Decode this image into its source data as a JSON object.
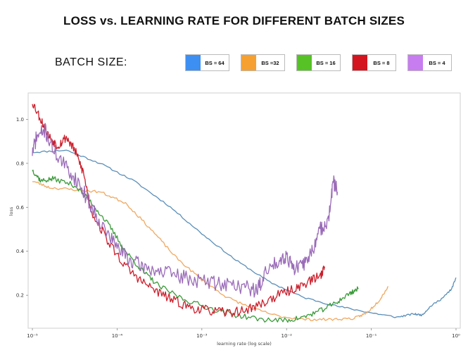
{
  "page": {
    "title": "LOSS vs. LEARNING RATE  FOR DIFFERENT BATCH SIZES",
    "legend_label": "BATCH SIZE:"
  },
  "legend": [
    {
      "label": "BS = 64",
      "color": "#3d8ff2"
    },
    {
      "label": "BS =32",
      "color": "#f5a030"
    },
    {
      "label": "BS = 16",
      "color": "#56c226"
    },
    {
      "label": "BS = 8",
      "color": "#d4141f"
    },
    {
      "label": "BS = 4",
      "color": "#c77df0"
    }
  ],
  "chart_data": {
    "type": "line",
    "title": "LOSS vs. LEARNING RATE  FOR DIFFERENT BATCH SIZES",
    "xlabel": "learning rate (log scale)",
    "ylabel": "loss",
    "x_scale": "log",
    "xlim_log10": [
      -5.05,
      0.05
    ],
    "ylim": [
      0.05,
      1.12
    ],
    "x_ticks": [
      {
        "label": "10⁻⁵",
        "log10": -5
      },
      {
        "label": "10⁻⁴",
        "log10": -4
      },
      {
        "label": "10⁻³",
        "log10": -3
      },
      {
        "label": "10⁻²",
        "log10": -2
      },
      {
        "label": "10⁻¹",
        "log10": -1
      },
      {
        "label": "10⁰",
        "log10": 0
      }
    ],
    "y_ticks": [
      {
        "label": "0.2",
        "value": 0.2
      },
      {
        "label": "0.4",
        "value": 0.4
      },
      {
        "label": "0.6",
        "value": 0.6
      },
      {
        "label": "0.8",
        "value": 0.8
      },
      {
        "label": "1.0",
        "value": 1.0
      }
    ],
    "series": [
      {
        "name": "BS = 64",
        "color": "#5b8fb9",
        "noise": 0.004,
        "seed": 11,
        "points": [
          [
            -5.0,
            0.85
          ],
          [
            -4.6,
            0.86
          ],
          [
            -4.2,
            0.8
          ],
          [
            -3.8,
            0.72
          ],
          [
            -3.4,
            0.61
          ],
          [
            -3.0,
            0.48
          ],
          [
            -2.6,
            0.36
          ],
          [
            -2.2,
            0.26
          ],
          [
            -1.8,
            0.19
          ],
          [
            -1.4,
            0.15
          ],
          [
            -1.0,
            0.12
          ],
          [
            -0.7,
            0.1
          ],
          [
            -0.5,
            0.115
          ],
          [
            -0.4,
            0.11
          ],
          [
            -0.3,
            0.15
          ],
          [
            -0.15,
            0.19
          ],
          [
            -0.05,
            0.23
          ],
          [
            0.0,
            0.28
          ]
        ]
      },
      {
        "name": "BS =32",
        "color": "#f0a860",
        "noise": 0.006,
        "seed": 23,
        "points": [
          [
            -5.0,
            0.72
          ],
          [
            -4.8,
            0.69
          ],
          [
            -4.5,
            0.68
          ],
          [
            -4.2,
            0.67
          ],
          [
            -3.9,
            0.62
          ],
          [
            -3.6,
            0.5
          ],
          [
            -3.3,
            0.37
          ],
          [
            -3.0,
            0.27
          ],
          [
            -2.7,
            0.19
          ],
          [
            -2.4,
            0.14
          ],
          [
            -2.1,
            0.105
          ],
          [
            -1.8,
            0.09
          ],
          [
            -1.5,
            0.09
          ],
          [
            -1.2,
            0.095
          ],
          [
            -1.05,
            0.12
          ],
          [
            -0.9,
            0.18
          ],
          [
            -0.8,
            0.24
          ]
        ]
      },
      {
        "name": "BS = 16",
        "color": "#3a9a3a",
        "noise": 0.012,
        "seed": 37,
        "points": [
          [
            -5.0,
            0.77
          ],
          [
            -4.9,
            0.72
          ],
          [
            -4.75,
            0.73
          ],
          [
            -4.5,
            0.7
          ],
          [
            -4.3,
            0.62
          ],
          [
            -4.1,
            0.52
          ],
          [
            -3.9,
            0.4
          ],
          [
            -3.7,
            0.31
          ],
          [
            -3.5,
            0.24
          ],
          [
            -3.2,
            0.18
          ],
          [
            -2.9,
            0.14
          ],
          [
            -2.6,
            0.11
          ],
          [
            -2.3,
            0.09
          ],
          [
            -2.0,
            0.085
          ],
          [
            -1.8,
            0.1
          ],
          [
            -1.6,
            0.13
          ],
          [
            -1.4,
            0.17
          ],
          [
            -1.25,
            0.21
          ],
          [
            -1.15,
            0.23
          ]
        ]
      },
      {
        "name": "BS = 8",
        "color": "#cc1f2c",
        "noise": 0.022,
        "seed": 53,
        "points": [
          [
            -5.0,
            1.08
          ],
          [
            -4.9,
            1.0
          ],
          [
            -4.8,
            0.92
          ],
          [
            -4.7,
            0.88
          ],
          [
            -4.6,
            0.92
          ],
          [
            -4.5,
            0.86
          ],
          [
            -4.4,
            0.76
          ],
          [
            -4.3,
            0.58
          ],
          [
            -4.1,
            0.44
          ],
          [
            -3.9,
            0.33
          ],
          [
            -3.7,
            0.26
          ],
          [
            -3.5,
            0.21
          ],
          [
            -3.3,
            0.17
          ],
          [
            -3.1,
            0.14
          ],
          [
            -2.9,
            0.13
          ],
          [
            -2.7,
            0.12
          ],
          [
            -2.5,
            0.13
          ],
          [
            -2.3,
            0.16
          ],
          [
            -2.1,
            0.2
          ],
          [
            -1.9,
            0.23
          ],
          [
            -1.75,
            0.26
          ],
          [
            -1.6,
            0.29
          ],
          [
            -1.55,
            0.33
          ]
        ]
      },
      {
        "name": "BS = 4",
        "color": "#9a6bb8",
        "noise": 0.035,
        "seed": 71,
        "points": [
          [
            -5.0,
            0.85
          ],
          [
            -4.95,
            0.92
          ],
          [
            -4.85,
            0.95
          ],
          [
            -4.75,
            0.86
          ],
          [
            -4.6,
            0.78
          ],
          [
            -4.45,
            0.71
          ],
          [
            -4.3,
            0.6
          ],
          [
            -4.15,
            0.5
          ],
          [
            -4.0,
            0.42
          ],
          [
            -3.85,
            0.36
          ],
          [
            -3.7,
            0.33
          ],
          [
            -3.5,
            0.31
          ],
          [
            -3.3,
            0.29
          ],
          [
            -3.1,
            0.27
          ],
          [
            -2.9,
            0.26
          ],
          [
            -2.7,
            0.25
          ],
          [
            -2.5,
            0.24
          ],
          [
            -2.35,
            0.22
          ],
          [
            -2.25,
            0.3
          ],
          [
            -2.1,
            0.36
          ],
          [
            -2.0,
            0.38
          ],
          [
            -1.9,
            0.32
          ],
          [
            -1.8,
            0.34
          ],
          [
            -1.7,
            0.4
          ],
          [
            -1.6,
            0.5
          ],
          [
            -1.5,
            0.55
          ],
          [
            -1.45,
            0.72
          ],
          [
            -1.4,
            0.67
          ]
        ]
      }
    ]
  }
}
